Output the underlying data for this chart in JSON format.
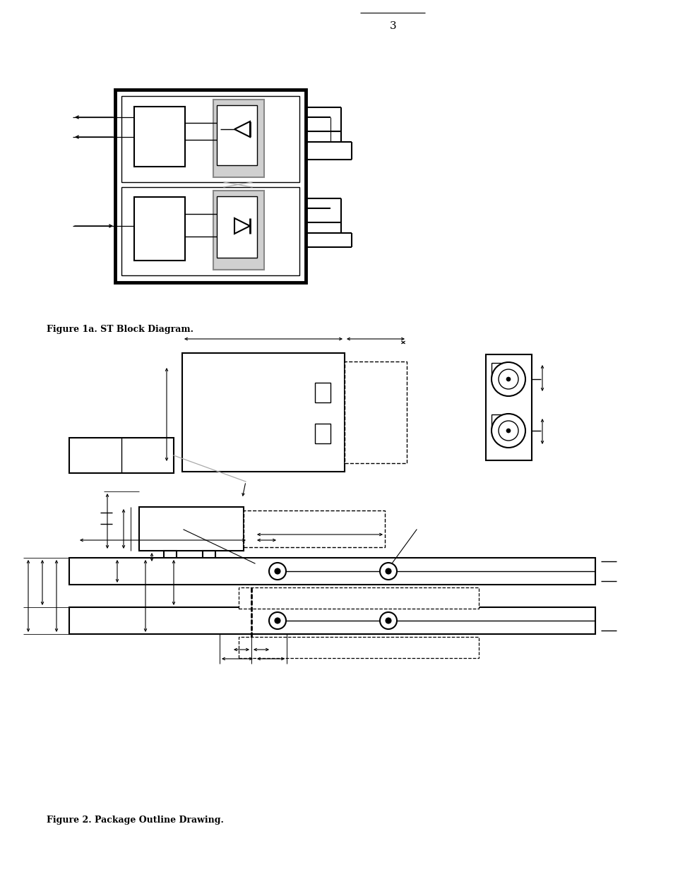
{
  "page_number": "3",
  "fig1_caption": "Figure 1a. ST Block Diagram.",
  "fig2_caption": "Figure 2. Package Outline Drawing.",
  "bg_color": "#ffffff",
  "lc": "#000000",
  "gc": "#888888"
}
